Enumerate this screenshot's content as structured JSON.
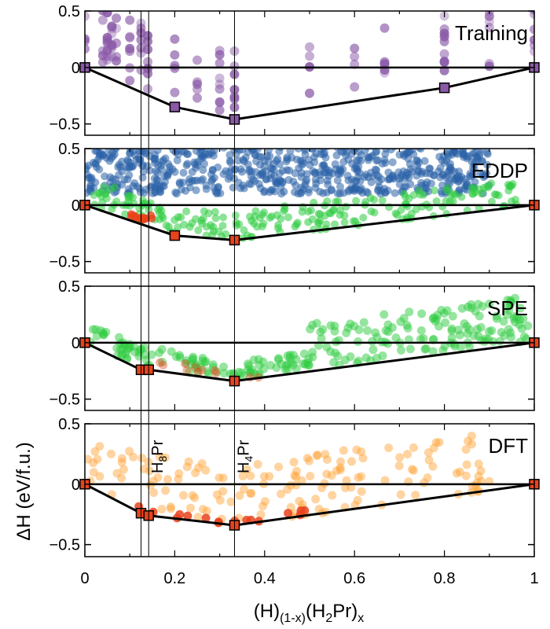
{
  "chart_data": {
    "type": "scatter",
    "xlabel": "(H)(1-x)(H2Pr)x",
    "xlabel_parts": {
      "base1": "(H)",
      "sub1": "(1-x)",
      "base2": "(H",
      "sub2": "2",
      "base3": "Pr)",
      "sub3": "x"
    },
    "ylabel": "ΔH (eV/f.u.)",
    "xlim": [
      0,
      1
    ],
    "ylim": [
      -0.6,
      0.5
    ],
    "x_ticks": [
      "0",
      "0.2",
      "0.4",
      "0.6",
      "0.8",
      "1"
    ],
    "y_ticks": [
      "0.5",
      "0",
      "−0.5"
    ],
    "composition_markers": [
      {
        "x": 0.125,
        "label": ""
      },
      {
        "x": 0.142,
        "label_main": "H",
        "label_sub": "8",
        "label_end": "Pr"
      },
      {
        "x": 0.333,
        "label_main": "H",
        "label_sub": "4",
        "label_end": "Pr"
      }
    ],
    "colors": {
      "training": "#7b4f9d",
      "eddp": "#2b63a8",
      "green": "#2ecc40",
      "red": "#e8431c",
      "orange": "#ffa02e",
      "hull": "#000000"
    },
    "panels": [
      {
        "label": "Training",
        "hull": [
          [
            0,
            0
          ],
          [
            0.2,
            -0.35
          ],
          [
            0.333,
            -0.46
          ],
          [
            0.8,
            -0.18
          ],
          [
            1,
            0
          ]
        ],
        "hull_points": [
          [
            0,
            0
          ],
          [
            0.2,
            -0.35
          ],
          [
            0.333,
            -0.46
          ],
          [
            0.8,
            -0.18
          ],
          [
            1,
            0
          ]
        ],
        "point_color": "#8a5aa8",
        "vertex_color": "#8a5aa8"
      },
      {
        "label": "EDDP",
        "hull": [
          [
            0,
            0
          ],
          [
            0.2,
            -0.27
          ],
          [
            0.333,
            -0.31
          ],
          [
            1,
            0
          ]
        ],
        "hull_points": [
          [
            0,
            0
          ],
          [
            0.2,
            -0.27
          ],
          [
            0.333,
            -0.31
          ],
          [
            1,
            0
          ]
        ],
        "point_color": "#2b63a8",
        "vertex_color": "#e8431c"
      },
      {
        "label": "SPE",
        "hull": [
          [
            0,
            0
          ],
          [
            0.125,
            -0.24
          ],
          [
            0.142,
            -0.24
          ],
          [
            0.333,
            -0.34
          ],
          [
            1,
            0
          ]
        ],
        "hull_points": [
          [
            0,
            0
          ],
          [
            0.125,
            -0.24
          ],
          [
            0.142,
            -0.24
          ],
          [
            0.333,
            -0.34
          ],
          [
            1,
            0
          ]
        ],
        "point_color": "#2ecc40",
        "vertex_color": "#e8431c"
      },
      {
        "label": "DFT",
        "hull": [
          [
            0,
            0
          ],
          [
            0.125,
            -0.24
          ],
          [
            0.142,
            -0.26
          ],
          [
            0.333,
            -0.34
          ],
          [
            1,
            0
          ]
        ],
        "hull_points": [
          [
            0,
            0
          ],
          [
            0.125,
            -0.24
          ],
          [
            0.142,
            -0.26
          ],
          [
            0.333,
            -0.34
          ],
          [
            1,
            0
          ]
        ],
        "point_color": "#ffa02e",
        "vertex_color": "#e8431c"
      }
    ]
  }
}
